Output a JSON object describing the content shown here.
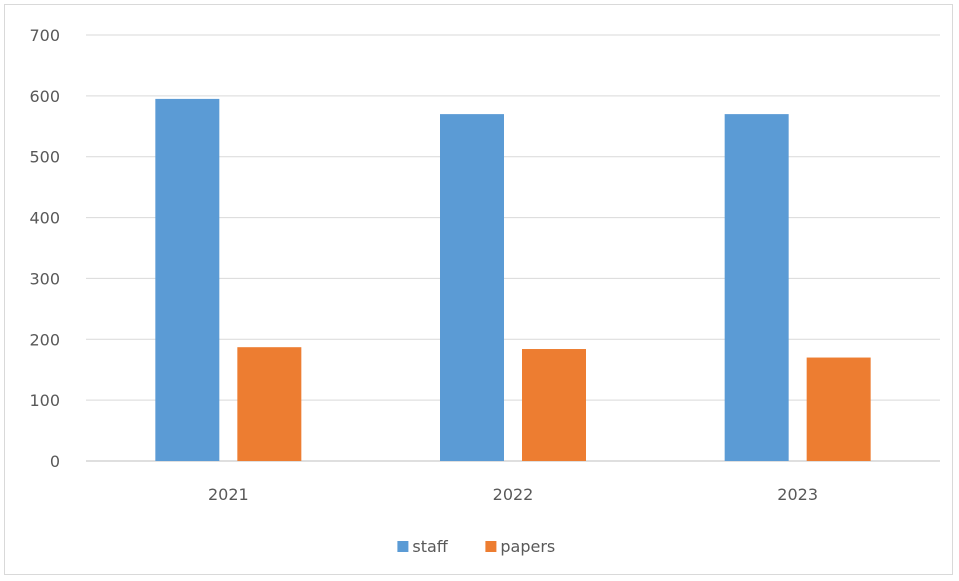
{
  "chart_data": {
    "type": "bar",
    "categories": [
      "2021",
      "2022",
      "2023"
    ],
    "series": [
      {
        "name": "staff",
        "values": [
          595,
          570,
          570
        ],
        "color": "#5b9bd5"
      },
      {
        "name": "papers",
        "values": [
          187,
          184,
          170
        ],
        "color": "#ed7d31"
      }
    ],
    "yticks": [
      "0",
      "100",
      "200",
      "300",
      "400",
      "500",
      "600",
      "700"
    ],
    "ylim": [
      0,
      700
    ],
    "grid": true,
    "legend": "bottom",
    "title": "",
    "xlabel": "",
    "ylabel": ""
  }
}
